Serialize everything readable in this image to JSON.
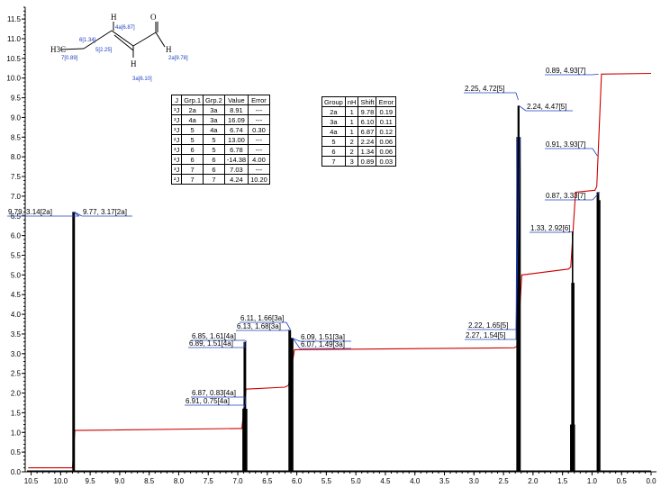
{
  "chart_data": {
    "type": "nmr_spectrum",
    "x_axis": {
      "range": [
        10.6,
        0.0
      ],
      "reversed": true,
      "tick_labels": [
        "10.5",
        "10.0",
        "9.5",
        "9.0",
        "8.5",
        "8.0",
        "7.5",
        "7.0",
        "6.5",
        "6.0",
        "5.5",
        "5.0",
        "4.5",
        "4.0",
        "3.5",
        "3.0",
        "2.5",
        "2.0",
        "1.5",
        "1.0",
        "0.5",
        "0.0"
      ]
    },
    "y_axis": {
      "range": [
        0,
        11.8
      ],
      "tick_labels": [
        "0.0",
        "0.5",
        "1.0",
        "1.5",
        "2.0",
        "2.5",
        "3.0",
        "3.5",
        "4.0",
        "4.5",
        "5.0",
        "5.5",
        "6.0",
        "6.5",
        "7.0",
        "7.5",
        "8.0",
        "8.5",
        "9.0",
        "9.5",
        "10.0",
        "10.5",
        "11.0",
        "11.5"
      ]
    },
    "peaks": [
      {
        "ppm": 9.79,
        "height": 6.6
      },
      {
        "ppm": 9.77,
        "height": 6.6
      },
      {
        "ppm": 6.91,
        "height": 1.6
      },
      {
        "ppm": 6.89,
        "height": 3.3
      },
      {
        "ppm": 6.87,
        "height": 3.3
      },
      {
        "ppm": 6.85,
        "height": 1.6
      },
      {
        "ppm": 6.13,
        "height": 3.6
      },
      {
        "ppm": 6.11,
        "height": 3.6
      },
      {
        "ppm": 6.09,
        "height": 3.4
      },
      {
        "ppm": 6.07,
        "height": 3.4
      },
      {
        "ppm": 2.27,
        "height": 8.5
      },
      {
        "ppm": 2.25,
        "height": 9.3
      },
      {
        "ppm": 2.24,
        "height": 9.3
      },
      {
        "ppm": 2.22,
        "height": 8.5
      },
      {
        "ppm": 1.36,
        "height": 1.2
      },
      {
        "ppm": 1.34,
        "height": 4.8
      },
      {
        "ppm": 1.33,
        "height": 6.1
      },
      {
        "ppm": 1.31,
        "height": 4.8
      },
      {
        "ppm": 1.3,
        "height": 1.2
      },
      {
        "ppm": 0.91,
        "height": 7.1
      },
      {
        "ppm": 0.89,
        "height": 7.1
      },
      {
        "ppm": 0.87,
        "height": 6.9
      }
    ],
    "integral_curve": [
      [
        10.55,
        0.1
      ],
      [
        9.8,
        0.1
      ],
      [
        9.76,
        1.05
      ],
      [
        7.0,
        1.1
      ],
      [
        6.93,
        1.1
      ],
      [
        6.86,
        2.1
      ],
      [
        6.2,
        2.15
      ],
      [
        6.14,
        2.2
      ],
      [
        6.04,
        3.1
      ],
      [
        2.32,
        3.15
      ],
      [
        2.26,
        3.2
      ],
      [
        2.19,
        5.0
      ],
      [
        1.4,
        5.15
      ],
      [
        1.36,
        5.2
      ],
      [
        1.28,
        7.1
      ],
      [
        0.95,
        7.15
      ],
      [
        0.92,
        7.25
      ],
      [
        0.84,
        10.1
      ],
      [
        0.0,
        10.12
      ]
    ],
    "annotations": [
      {
        "text": "9.79, 3.14[2a]"
      },
      {
        "text": "9.77, 3.17[2a]"
      },
      {
        "text": "6.85, 1.61[4a]"
      },
      {
        "text": "6.89, 1.51[4a]"
      },
      {
        "text": "6.87, 0.83[4a]"
      },
      {
        "text": "6.91, 0.75[4a]"
      },
      {
        "text": "6.11, 1.66[3a]"
      },
      {
        "text": "6.13, 1.68[3a]"
      },
      {
        "text": "6.09, 1.51[3a]"
      },
      {
        "text": "6.07, 1.49[3a]"
      },
      {
        "text": "2.25, 4.72[5]"
      },
      {
        "text": "2.24, 4.47[5]"
      },
      {
        "text": "2.22, 1.65[5]"
      },
      {
        "text": "2.27, 1.54[5]"
      },
      {
        "text": "1.33, 2.92[6]"
      },
      {
        "text": "0.89, 4.93[7]"
      },
      {
        "text": "0.91, 3.93[7]"
      },
      {
        "text": "0.87, 3.33[7]"
      }
    ],
    "coupling_table": {
      "headers": [
        "J",
        "Grp.1",
        "Grp.2",
        "Value",
        "Error"
      ],
      "rows": [
        [
          "³J",
          "2a",
          "3a",
          "8.91",
          "---"
        ],
        [
          "³J",
          "4a",
          "3a",
          "16.09",
          "---"
        ],
        [
          "³J",
          "5",
          "4a",
          "6.74",
          "0.30"
        ],
        [
          "²J",
          "5",
          "5",
          "13.00",
          "---"
        ],
        [
          "³J",
          "6",
          "5",
          "6.78",
          "---"
        ],
        [
          "²J",
          "6",
          "6",
          "-14.38",
          "4.00"
        ],
        [
          "³J",
          "7",
          "6",
          "7.03",
          "---"
        ],
        [
          "²J",
          "7",
          "7",
          "4.24",
          "10.20"
        ]
      ]
    },
    "shift_table": {
      "headers": [
        "Group",
        "nH",
        "Shift",
        "Error"
      ],
      "rows": [
        [
          "2a",
          "1",
          "9.78",
          "0.19"
        ],
        [
          "3a",
          "1",
          "6.10",
          "0.11"
        ],
        [
          "4a",
          "1",
          "6.87",
          "0.12"
        ],
        [
          "5",
          "2",
          "2.24",
          "0.06"
        ],
        [
          "6",
          "2",
          "1.34",
          "0.06"
        ],
        [
          "7",
          "3",
          "0.89",
          "0.03"
        ]
      ]
    },
    "molecule": {
      "atoms": [
        "H",
        "H",
        "H",
        "O",
        "H3C"
      ],
      "labels": [
        "4a[6.87]",
        "6[1.34]",
        "5[2.25]",
        "7[0.89]",
        "3a[6.10]",
        "2a[9.78]"
      ]
    },
    "colors": {
      "integral": "#cc0000",
      "spectrum": "#000000",
      "labels": "#1e3fbf"
    }
  }
}
